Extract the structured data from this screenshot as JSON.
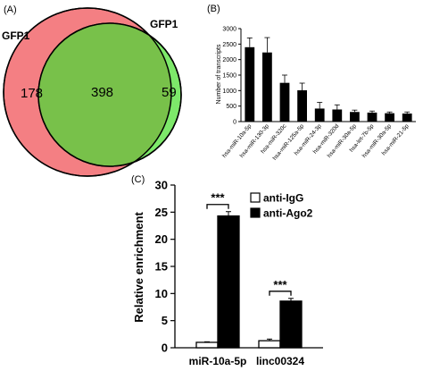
{
  "chart_data": [
    {
      "type": "venn",
      "panel_label": "(A)",
      "sets": [
        {
          "name": "GFP1",
          "only": 178,
          "color": "#f47f83"
        },
        {
          "name": "GFP1",
          "only": 59,
          "color": "#7de86a"
        }
      ],
      "intersection": 398,
      "intersection_color": "#78c14a"
    },
    {
      "type": "bar",
      "panel_label": "(B)",
      "title": "",
      "xlabel": "",
      "ylabel": "Number of transcripts",
      "ylim": [
        0,
        3000
      ],
      "yticks": [
        "0",
        "500",
        "1000",
        "1500",
        "2000",
        "2500",
        "3000"
      ],
      "categories": [
        "hsa-miR-10a-5p",
        "hsa-miR-130-3p",
        "hsa-miR-320c",
        "hsa-miR-125a-5p",
        "hsa-miR-24-3p",
        "hsa-miR-320d",
        "hsa-miR-30a-5p",
        "hsa-let-7b-5p",
        "hsa-miR-30a-5p",
        "hsa-miR-21-5p"
      ],
      "values": [
        2400,
        2230,
        1250,
        1010,
        420,
        390,
        310,
        290,
        270,
        260
      ],
      "errors": [
        300,
        480,
        250,
        230,
        200,
        150,
        60,
        50,
        40,
        50
      ],
      "bar_color": "#000000"
    },
    {
      "type": "bar",
      "panel_label": "(C)",
      "title": "",
      "xlabel": "",
      "ylabel": "Relative enrichment",
      "ylim": [
        0,
        30
      ],
      "yticks": [
        "0",
        "5",
        "10",
        "15",
        "20",
        "25",
        "30"
      ],
      "categories": [
        "miR-10a-5p",
        "linc00324"
      ],
      "series": [
        {
          "name": "anti-IgG",
          "values": [
            1.0,
            1.3
          ],
          "errors": [
            0.1,
            0.3
          ],
          "color": "#ffffff"
        },
        {
          "name": "anti-Ago2",
          "values": [
            24.3,
            8.6
          ],
          "errors": [
            0.8,
            0.5
          ],
          "color": "#000000"
        }
      ],
      "significance": [
        "***",
        "***"
      ],
      "legend": "top-right"
    }
  ]
}
